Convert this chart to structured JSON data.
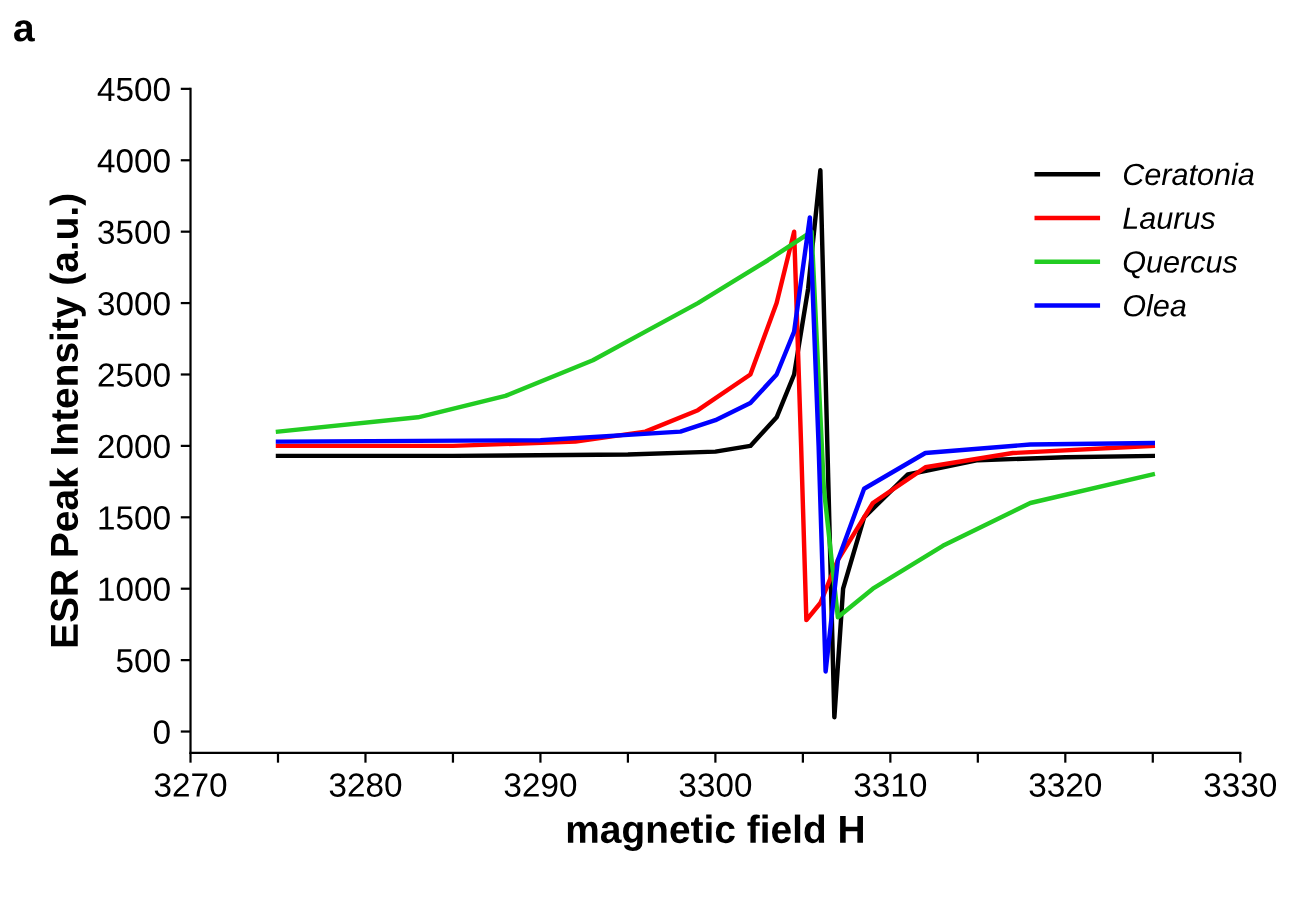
{
  "chart_data": {
    "type": "line",
    "xlabel": "magnetic field H",
    "ylabel": "ESR Peak Intensity (a.u.)",
    "annotations": [
      "a"
    ],
    "xlim": [
      3270,
      3330
    ],
    "ylim": [
      -150,
      4500
    ],
    "xticks": [
      3270,
      {
        "value": 3275,
        "label": null
      },
      3280,
      {
        "value": 3285,
        "label": null
      },
      3290,
      {
        "value": 3295,
        "label": null
      },
      3300,
      {
        "value": 3305,
        "label": null
      },
      3310,
      {
        "value": 3315,
        "label": null
      },
      3320,
      {
        "value": 3325,
        "label": null
      },
      3330
    ],
    "yticks": [
      0,
      500,
      1000,
      1500,
      2000,
      2500,
      3000,
      3500,
      4000,
      4500
    ],
    "grid": false,
    "legend": "top right",
    "marker": "none",
    "line_style": "solid",
    "series": [
      {
        "name": "Ceratonia",
        "color": "#000000",
        "x": [
          3275,
          3285,
          3295,
          3300,
          3302,
          3303.5,
          3304.5,
          3305.3,
          3306.0,
          3306.4,
          3306.8,
          3307.3,
          3308.5,
          3311,
          3315,
          3320,
          3325
        ],
        "values": [
          1930,
          1930,
          1940,
          1960,
          2000,
          2200,
          2500,
          3100,
          3930,
          2000,
          100,
          1000,
          1500,
          1800,
          1900,
          1920,
          1930
        ]
      },
      {
        "name": "Laurus",
        "color": "#ff0000",
        "x": [
          3275,
          3285,
          3292,
          3296,
          3299,
          3302,
          3303.5,
          3304.5,
          3304.9,
          3305.2,
          3306,
          3307,
          3309,
          3312,
          3317,
          3325
        ],
        "values": [
          2000,
          2000,
          2030,
          2100,
          2250,
          2500,
          3000,
          3500,
          2000,
          780,
          900,
          1200,
          1600,
          1850,
          1950,
          2000
        ]
      },
      {
        "name": "Quercus",
        "color": "#22cc22",
        "x": [
          3275,
          3283,
          3288,
          3293,
          3296,
          3299,
          3301,
          3303,
          3305.5,
          3306.2,
          3307,
          3309,
          3313,
          3318,
          3325
        ],
        "values": [
          2100,
          2200,
          2350,
          2600,
          2800,
          3000,
          3150,
          3300,
          3500,
          1700,
          800,
          1000,
          1300,
          1600,
          1800
        ]
      },
      {
        "name": "Olea",
        "color": "#0000ff",
        "x": [
          3275,
          3290,
          3298,
          3300,
          3302,
          3303.5,
          3304.5,
          3305.4,
          3305.9,
          3306.3,
          3307,
          3308.5,
          3312,
          3318,
          3325
        ],
        "values": [
          2030,
          2040,
          2100,
          2180,
          2300,
          2500,
          2800,
          3600,
          2000,
          420,
          1200,
          1700,
          1950,
          2010,
          2020
        ]
      }
    ]
  }
}
